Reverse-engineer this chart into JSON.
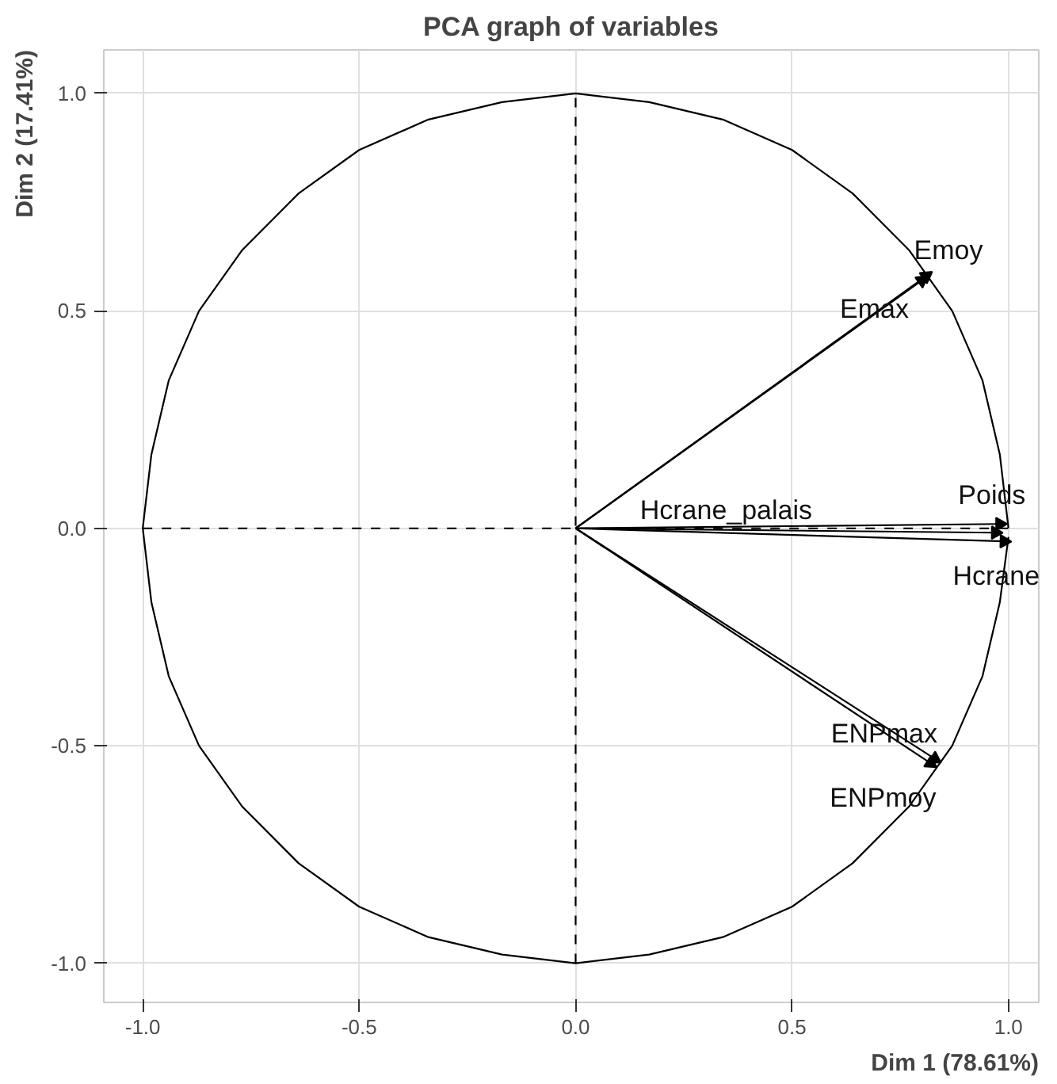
{
  "chart_data": {
    "type": "line",
    "title": "PCA graph of variables",
    "xlabel": "Dim 1 (78.61%)",
    "ylabel": "Dim 2 (17.41%)",
    "xlim": [
      -1.09,
      1.07
    ],
    "ylim": [
      -1.09,
      1.1
    ],
    "xticks": [
      {
        "value": -1,
        "label": "-1.0"
      },
      {
        "value": -0.5,
        "label": "-0.5"
      },
      {
        "value": 0,
        "label": "0.0"
      },
      {
        "value": 0.5,
        "label": "0.5"
      },
      {
        "value": 1,
        "label": "1.0"
      }
    ],
    "yticks": [
      {
        "value": -1,
        "label": "-1.0"
      },
      {
        "value": -0.5,
        "label": "-0.5"
      },
      {
        "value": 0,
        "label": "0.0"
      },
      {
        "value": 0.5,
        "label": "0.5"
      },
      {
        "value": 1,
        "label": "1.0"
      }
    ],
    "grid": true,
    "legend": false,
    "series": [
      {
        "color": "#000000",
        "line_style": "dashed",
        "x": [
          0,
          0
        ],
        "values": [
          -1,
          1
        ]
      },
      {
        "color": "#000000",
        "line_style": "dashed",
        "x": [
          -1,
          1
        ],
        "values": [
          0,
          0
        ]
      },
      {
        "name": "Emoy",
        "color": "#000000",
        "x": [
          0,
          0.81
        ],
        "values": [
          0,
          0.58
        ]
      },
      {
        "name": "Emax",
        "color": "#000000",
        "x": [
          0,
          0.8
        ],
        "values": [
          0,
          0.57
        ]
      },
      {
        "name": "Poids",
        "color": "#000000",
        "x": [
          0,
          0.98
        ],
        "values": [
          0,
          0.01
        ]
      },
      {
        "name": "Hcrane_palais",
        "color": "#000000",
        "x": [
          0,
          0.97
        ],
        "values": [
          0,
          -0.01
        ]
      },
      {
        "name": "Hcrane",
        "color": "#000000",
        "x": [
          0,
          0.99
        ],
        "values": [
          0,
          -0.03
        ]
      },
      {
        "name": "ENPmax",
        "color": "#000000",
        "x": [
          0,
          0.83
        ],
        "values": [
          0,
          -0.53
        ]
      },
      {
        "name": "ENPmoy",
        "color": "#000000",
        "x": [
          0,
          0.82
        ],
        "values": [
          0,
          -0.54
        ]
      },
      {
        "color": "#000000",
        "x": [
          1,
          0.98,
          0.94,
          0.87,
          0.77,
          0.64,
          0.5,
          0.34,
          0.17,
          0,
          -0.17,
          -0.34,
          -0.5,
          -0.64,
          -0.77,
          -0.87,
          -0.94,
          -0.98,
          -1,
          -0.98,
          -0.94,
          -0.87,
          -0.77,
          -0.64,
          -0.5,
          -0.34,
          -0.17,
          0,
          0.17,
          0.34,
          0.5,
          0.64,
          0.77,
          0.87,
          0.94,
          0.98,
          1
        ],
        "values": [
          0,
          0.17,
          0.34,
          0.5,
          0.64,
          0.77,
          0.87,
          0.94,
          0.98,
          1,
          0.98,
          0.94,
          0.87,
          0.77,
          0.64,
          0.5,
          0.34,
          0.17,
          0,
          -0.17,
          -0.34,
          -0.5,
          -0.64,
          -0.77,
          -0.87,
          -0.94,
          -0.98,
          -1,
          -0.98,
          -0.94,
          -0.87,
          -0.77,
          -0.64,
          -0.5,
          -0.34,
          -0.17,
          -0.02
        ]
      }
    ]
  }
}
